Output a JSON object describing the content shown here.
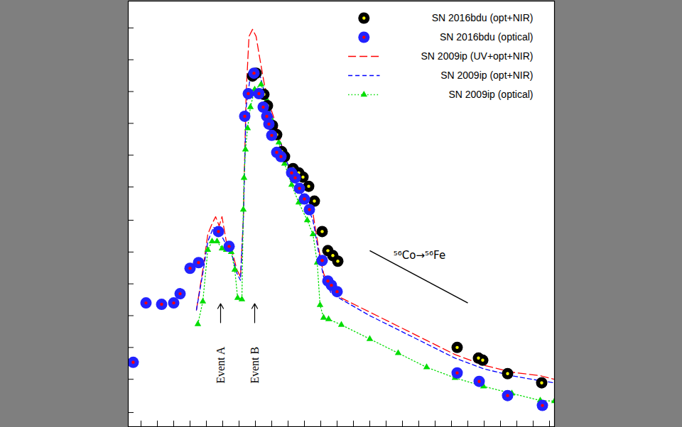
{
  "chart_data": {
    "type": "scatter",
    "xlim": [
      0,
      600
    ],
    "ylim": [
      0,
      602
    ],
    "xticks": [
      18,
      41,
      64,
      87,
      110,
      133,
      156,
      179,
      202,
      225,
      248,
      271,
      294,
      317,
      340,
      363,
      386,
      409,
      432,
      455,
      478,
      501,
      524,
      547,
      570,
      593
    ],
    "yticks": [
      20,
      67,
      112,
      157,
      202,
      247,
      292,
      339,
      384,
      429,
      474,
      519,
      564
    ],
    "tick_labels": false,
    "grid": false,
    "legend": "top-right",
    "series": [
      {
        "name": "SN 2016bdu (opt+NIR)",
        "type": "scatter",
        "marker": "circle",
        "color": "black",
        "values": [
          [
            175,
            496
          ],
          [
            180,
            500
          ],
          [
            191,
            470
          ],
          [
            196,
            454
          ],
          [
            203,
            426
          ],
          [
            209,
            413
          ],
          [
            216,
            389
          ],
          [
            220,
            382
          ],
          [
            232,
            365
          ],
          [
            240,
            359
          ],
          [
            246,
            353
          ],
          [
            254,
            340
          ],
          [
            262,
            319
          ],
          [
            273,
            276
          ],
          [
            281,
            249
          ],
          [
            288,
            242
          ],
          [
            295,
            234
          ],
          [
            463,
            112
          ],
          [
            493,
            97
          ],
          [
            499,
            94
          ],
          [
            534,
            75
          ],
          [
            582,
            62
          ]
        ]
      },
      {
        "name": "SN 2016bdu (optical)",
        "type": "scatter",
        "marker": "circle",
        "color": "#2222ff",
        "values": [
          [
            7,
            91
          ],
          [
            25,
            175
          ],
          [
            47,
            173
          ],
          [
            64,
            175
          ],
          [
            73,
            188
          ],
          [
            87,
            224
          ],
          [
            99,
            232
          ],
          [
            127,
            276
          ],
          [
            142,
            255
          ],
          [
            164,
            439
          ],
          [
            169,
            471
          ],
          [
            177,
            500
          ],
          [
            184,
            471
          ],
          [
            190,
            452
          ],
          [
            195,
            439
          ],
          [
            198,
            428
          ],
          [
            202,
            412
          ],
          [
            209,
            388
          ],
          [
            215,
            382
          ],
          [
            230,
            359
          ],
          [
            235,
            352
          ],
          [
            241,
            337
          ],
          [
            248,
            322
          ],
          [
            255,
            307
          ],
          [
            273,
            235
          ],
          [
            281,
            206
          ],
          [
            286,
            200
          ],
          [
            294,
            191
          ],
          [
            463,
            76
          ],
          [
            494,
            64
          ],
          [
            534,
            44
          ],
          [
            583,
            30
          ]
        ]
      },
      {
        "name": "SN 2009ip (UV+opt+NIR)",
        "type": "line",
        "line_style": "long-dashed",
        "color": "red",
        "values": [
          [
            96,
            165
          ],
          [
            105,
            222
          ],
          [
            112,
            272
          ],
          [
            118,
            287
          ],
          [
            123,
            297
          ],
          [
            128,
            284
          ],
          [
            132,
            297
          ],
          [
            138,
            262
          ],
          [
            145,
            252
          ],
          [
            153,
            222
          ],
          [
            158,
            212
          ],
          [
            162,
            292
          ],
          [
            166,
            472
          ],
          [
            170,
            552
          ],
          [
            175,
            562
          ],
          [
            180,
            552
          ],
          [
            185,
            522
          ],
          [
            192,
            482
          ],
          [
            200,
            452
          ],
          [
            210,
            422
          ],
          [
            220,
            382
          ],
          [
            235,
            352
          ],
          [
            250,
            327
          ],
          [
            260,
            302
          ],
          [
            268,
            252
          ],
          [
            275,
            217
          ],
          [
            285,
            192
          ],
          [
            300,
            182
          ],
          [
            340,
            162
          ],
          [
            380,
            142
          ],
          [
            420,
            122
          ],
          [
            460,
            102
          ],
          [
            500,
            87
          ],
          [
            540,
            77
          ],
          [
            580,
            72
          ],
          [
            600,
            67
          ]
        ]
      },
      {
        "name": "SN 2009ip (opt+NIR)",
        "type": "line",
        "line_style": "dashed",
        "color": "blue",
        "values": [
          [
            96,
            165
          ],
          [
            105,
            217
          ],
          [
            112,
            262
          ],
          [
            120,
            282
          ],
          [
            128,
            277
          ],
          [
            138,
            257
          ],
          [
            145,
            247
          ],
          [
            153,
            217
          ],
          [
            158,
            207
          ],
          [
            162,
            292
          ],
          [
            166,
            452
          ],
          [
            172,
            497
          ],
          [
            178,
            502
          ],
          [
            185,
            499
          ],
          [
            192,
            472
          ],
          [
            200,
            447
          ],
          [
            210,
            417
          ],
          [
            220,
            382
          ],
          [
            235,
            347
          ],
          [
            250,
            317
          ],
          [
            260,
            292
          ],
          [
            268,
            247
          ],
          [
            275,
            212
          ],
          [
            285,
            190
          ],
          [
            300,
            180
          ],
          [
            340,
            157
          ],
          [
            380,
            137
          ],
          [
            420,
            117
          ],
          [
            460,
            97
          ],
          [
            500,
            82
          ],
          [
            540,
            72
          ],
          [
            580,
            65
          ],
          [
            600,
            62
          ]
        ]
      },
      {
        "name": "SN 2009ip (optical)",
        "type": "line",
        "line_style": "dotted",
        "marker": "triangle",
        "color": "#00dd00",
        "values": [
          [
            98,
            145
          ],
          [
            105,
            177
          ],
          [
            112,
            250
          ],
          [
            118,
            262
          ],
          [
            125,
            262
          ],
          [
            132,
            252
          ],
          [
            138,
            250
          ],
          [
            145,
            247
          ],
          [
            150,
            222
          ],
          [
            154,
            182
          ],
          [
            160,
            180
          ],
          [
            162,
            307
          ],
          [
            163,
            352
          ],
          [
            165,
            392
          ],
          [
            168,
            422
          ],
          [
            172,
            452
          ],
          [
            178,
            477
          ],
          [
            187,
            484
          ],
          [
            195,
            462
          ],
          [
            203,
            432
          ],
          [
            212,
            402
          ],
          [
            220,
            372
          ],
          [
            230,
            342
          ],
          [
            240,
            317
          ],
          [
            252,
            292
          ],
          [
            260,
            272
          ],
          [
            266,
            232
          ],
          [
            270,
            172
          ],
          [
            275,
            154
          ],
          [
            282,
            152
          ],
          [
            300,
            144
          ],
          [
            340,
            124
          ],
          [
            380,
            104
          ],
          [
            420,
            84
          ],
          [
            460,
            69
          ],
          [
            500,
            57
          ],
          [
            540,
            47
          ],
          [
            580,
            37
          ],
          [
            600,
            36
          ]
        ]
      }
    ],
    "annotations": [
      {
        "text": "Event A",
        "x": 130,
        "y": 87,
        "arrow": [
          [
            130,
            147
          ],
          [
            130,
            174
          ]
        ]
      },
      {
        "text": "Event B",
        "x": 178,
        "y": 87,
        "arrow": [
          [
            178,
            147
          ],
          [
            178,
            174
          ]
        ]
      },
      {
        "text": "⁵⁶Co→⁵⁶Fe",
        "x": 410,
        "y": 242,
        "line": [
          [
            340,
            249
          ],
          [
            478,
            175
          ]
        ]
      }
    ]
  }
}
